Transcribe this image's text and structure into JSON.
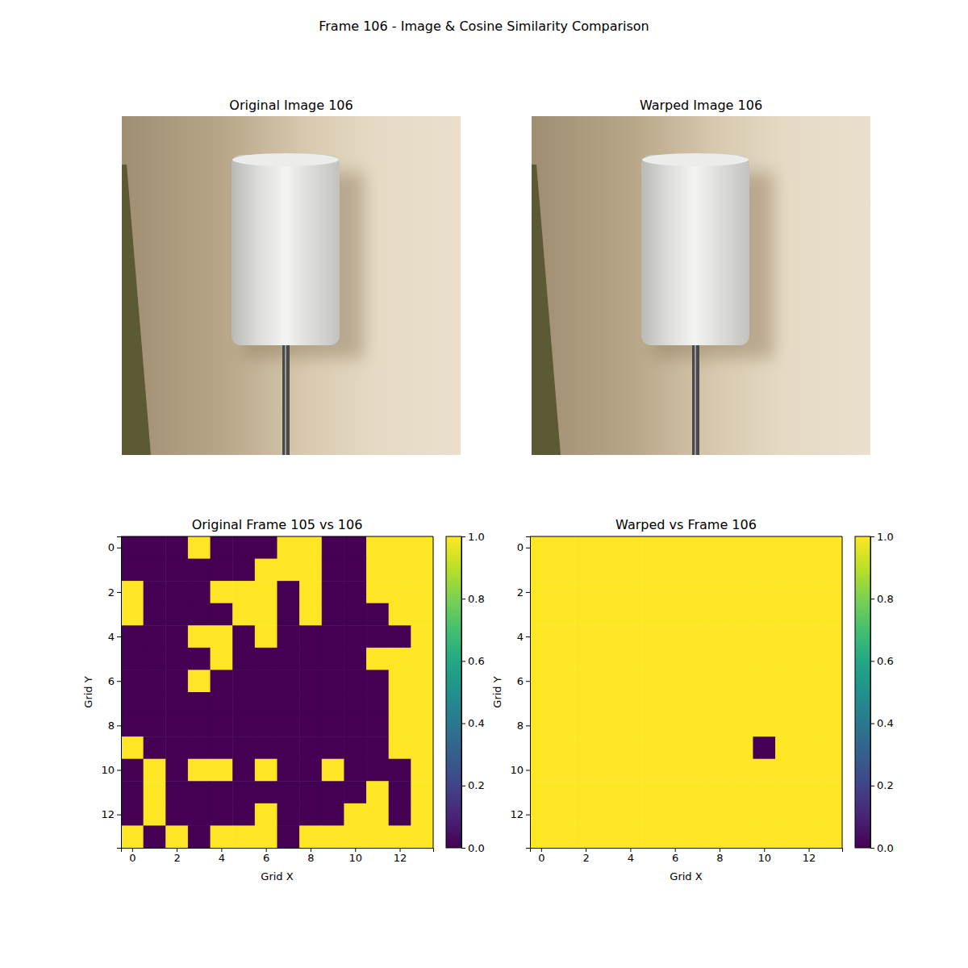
{
  "figure_title": "Frame 106 - Image & Cosine Similarity Comparison",
  "images": [
    {
      "title": "Original Image 106"
    },
    {
      "title": "Warped Image 106"
    }
  ],
  "chart_data": [
    {
      "type": "heatmap",
      "title": "Original Frame 105 vs 106",
      "x_label": "Grid X",
      "y_label": "Grid Y",
      "xlim": [
        -0.5,
        13.5
      ],
      "ylim": [
        13.5,
        -0.5
      ],
      "xticks": [
        0,
        2,
        4,
        6,
        8,
        10,
        12
      ],
      "yticks": [
        0,
        2,
        4,
        6,
        8,
        10,
        12
      ],
      "cells": [
        [
          0,
          0,
          0,
          1,
          0,
          0,
          0,
          1,
          1,
          0,
          0,
          1,
          1,
          1
        ],
        [
          0,
          0,
          0,
          0,
          0,
          0,
          1,
          1,
          1,
          0,
          0,
          1,
          1,
          1
        ],
        [
          1,
          0,
          0,
          0,
          1,
          1,
          1,
          0,
          1,
          0,
          0,
          1,
          1,
          1
        ],
        [
          1,
          0,
          0,
          0,
          0,
          1,
          1,
          0,
          1,
          0,
          0,
          0,
          1,
          1
        ],
        [
          0,
          0,
          0,
          1,
          1,
          0,
          1,
          0,
          0,
          0,
          0,
          0,
          0,
          1
        ],
        [
          0,
          0,
          0,
          0,
          1,
          0,
          0,
          0,
          0,
          0,
          0,
          1,
          1,
          1
        ],
        [
          0,
          0,
          0,
          1,
          0,
          0,
          0,
          0,
          0,
          0,
          0,
          0,
          1,
          1
        ],
        [
          0,
          0,
          0,
          0,
          0,
          0,
          0,
          0,
          0,
          0,
          0,
          0,
          1,
          1
        ],
        [
          0,
          0,
          0,
          0,
          0,
          0,
          0,
          0,
          0,
          0,
          0,
          0,
          1,
          1
        ],
        [
          1,
          0,
          0,
          0,
          0,
          0,
          0,
          0,
          0,
          0,
          0,
          0,
          1,
          1
        ],
        [
          0,
          1,
          0,
          1,
          1,
          0,
          1,
          0,
          0,
          1,
          0,
          0,
          0,
          1
        ],
        [
          0,
          1,
          0,
          0,
          0,
          0,
          0,
          0,
          0,
          0,
          0,
          1,
          0,
          1
        ],
        [
          0,
          1,
          0,
          0,
          0,
          0,
          1,
          0,
          0,
          0,
          1,
          1,
          0,
          1
        ],
        [
          1,
          0,
          1,
          0,
          1,
          1,
          1,
          0,
          1,
          1,
          1,
          1,
          1,
          1
        ]
      ],
      "colorbar": {
        "range": [
          0,
          1
        ],
        "ticks": [
          {
            "value": 0,
            "label": "0.0"
          },
          {
            "value": 0.2,
            "label": "0.2"
          },
          {
            "value": 0.4,
            "label": "0.4"
          },
          {
            "value": 0.6,
            "label": "0.6"
          },
          {
            "value": 0.8,
            "label": "0.8"
          },
          {
            "value": 1,
            "label": "1.0"
          }
        ]
      }
    },
    {
      "type": "heatmap",
      "title": "Warped vs Frame 106",
      "x_label": "Grid X",
      "y_label": "Grid Y",
      "xlim": [
        -0.5,
        13.5
      ],
      "ylim": [
        13.5,
        -0.5
      ],
      "xticks": [
        0,
        2,
        4,
        6,
        8,
        10,
        12
      ],
      "yticks": [
        0,
        2,
        4,
        6,
        8,
        10,
        12
      ],
      "cells": [
        [
          1,
          1,
          1,
          1,
          1,
          1,
          1,
          1,
          1,
          1,
          1,
          1,
          1,
          1
        ],
        [
          1,
          1,
          1,
          1,
          1,
          1,
          1,
          1,
          1,
          1,
          1,
          1,
          1,
          1
        ],
        [
          1,
          1,
          1,
          1,
          1,
          1,
          1,
          1,
          1,
          1,
          1,
          1,
          1,
          1
        ],
        [
          1,
          1,
          1,
          1,
          1,
          1,
          1,
          1,
          1,
          1,
          1,
          1,
          1,
          1
        ],
        [
          1,
          1,
          1,
          1,
          1,
          1,
          1,
          1,
          1,
          1,
          1,
          1,
          1,
          1
        ],
        [
          1,
          1,
          1,
          1,
          1,
          1,
          1,
          1,
          1,
          1,
          1,
          1,
          1,
          1
        ],
        [
          1,
          1,
          1,
          1,
          1,
          1,
          1,
          1,
          1,
          1,
          1,
          1,
          1,
          1
        ],
        [
          1,
          1,
          1,
          1,
          1,
          1,
          1,
          1,
          1,
          1,
          1,
          1,
          1,
          1
        ],
        [
          1,
          1,
          1,
          1,
          1,
          1,
          1,
          1,
          1,
          1,
          1,
          1,
          1,
          1
        ],
        [
          1,
          1,
          1,
          1,
          1,
          1,
          1,
          1,
          1,
          1,
          0,
          1,
          1,
          1
        ],
        [
          1,
          1,
          1,
          1,
          1,
          1,
          1,
          1,
          1,
          1,
          1,
          1,
          1,
          1
        ],
        [
          1,
          1,
          1,
          1,
          1,
          1,
          1,
          1,
          1,
          1,
          1,
          1,
          1,
          1
        ],
        [
          1,
          1,
          1,
          1,
          1,
          1,
          1,
          1,
          1,
          1,
          1,
          1,
          1,
          1
        ],
        [
          1,
          1,
          1,
          1,
          1,
          1,
          1,
          1,
          1,
          1,
          1,
          1,
          1,
          1
        ]
      ],
      "colorbar": {
        "range": [
          0,
          1
        ],
        "ticks": [
          {
            "value": 0,
            "label": "0.0"
          },
          {
            "value": 0.2,
            "label": "0.2"
          },
          {
            "value": 0.4,
            "label": "0.4"
          },
          {
            "value": 0.6,
            "label": "0.6"
          },
          {
            "value": 0.8,
            "label": "0.8"
          },
          {
            "value": 1,
            "label": "1.0"
          }
        ]
      }
    }
  ]
}
